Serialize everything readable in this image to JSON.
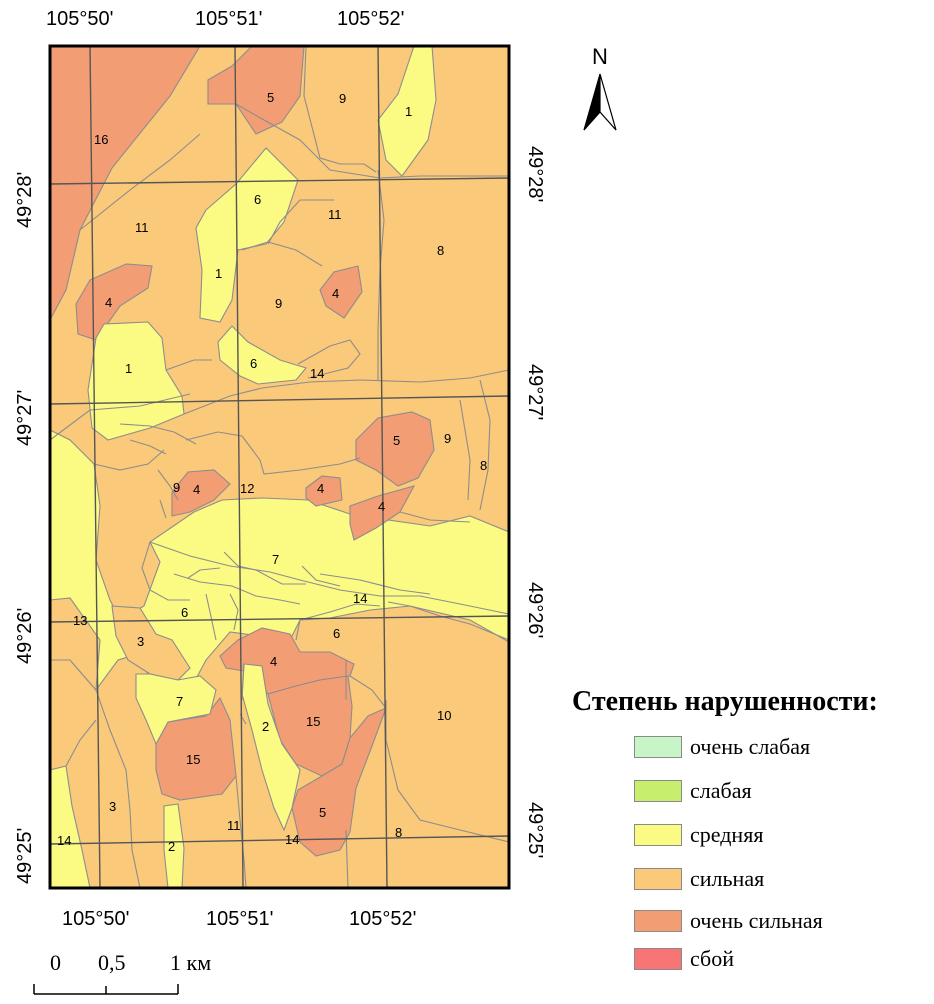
{
  "map": {
    "top_lon": [
      "105°50'",
      "105°51'",
      "105°52'"
    ],
    "bottom_lon": [
      "105°50'",
      "105°51'",
      "105°52'"
    ],
    "left_lat": [
      "49°28'",
      "49°27'",
      "49°26'",
      "49°25'"
    ],
    "right_lat": [
      "49°28'",
      "49°27'",
      "49°26'",
      "49°25'"
    ],
    "units": [
      "16",
      "5",
      "9",
      "1",
      "6",
      "11",
      "11",
      "8",
      "4",
      "1",
      "9",
      "4",
      "1",
      "6",
      "14",
      "5",
      "9",
      "8",
      "9",
      "4",
      "12",
      "4",
      "4",
      "7",
      "13",
      "6",
      "14",
      "6",
      "3",
      "4",
      "7",
      "2",
      "15",
      "10",
      "15",
      "3",
      "5",
      "11",
      "14",
      "2",
      "14",
      "8"
    ],
    "class_colors": {
      "very_weak": "#c8f5c8",
      "weak": "#c8ee6e",
      "medium": "#fbfb84",
      "strong": "#fac97a",
      "very_strong": "#f39d75",
      "failure": "#f87576"
    }
  },
  "north": {
    "label": "N"
  },
  "legend": {
    "title": "Степень нарушенности:",
    "items": [
      {
        "label": "очень слабая",
        "color": "#c8f5c8"
      },
      {
        "label": "слабая",
        "color": "#c8ee6e"
      },
      {
        "label": "средняя",
        "color": "#fbfb84"
      },
      {
        "label": "сильная",
        "color": "#fac97a"
      },
      {
        "label": "очень сильная",
        "color": "#f39d75"
      },
      {
        "label": "сбой",
        "color": "#f87576"
      }
    ]
  },
  "scale": {
    "t0": "0",
    "t1": "0,5",
    "t2": "1 км"
  }
}
